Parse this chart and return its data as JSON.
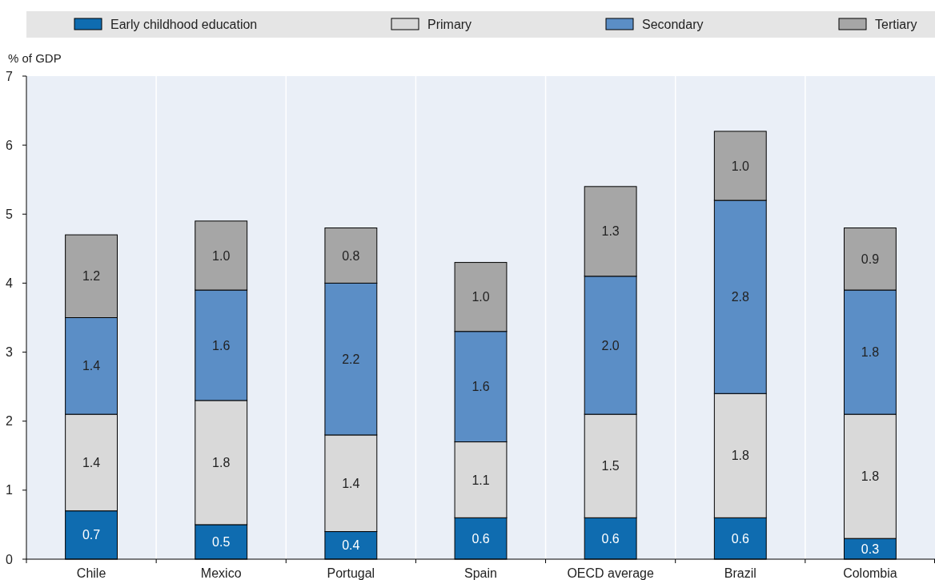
{
  "chart_data": {
    "type": "bar",
    "stacked": true,
    "ylabel": "% of GDP",
    "categories": [
      "Chile",
      "Mexico",
      "Portugal",
      "Spain",
      "OECD average",
      "Brazil",
      "Colombia"
    ],
    "series": [
      {
        "name": "Early childhood education",
        "color": "#0f6cb0",
        "values": [
          0.7,
          0.5,
          0.4,
          0.6,
          0.6,
          0.6,
          0.3
        ],
        "value_labels": [
          "0.7",
          "0.5",
          "0.4",
          "0.6",
          "0.6",
          "0.6",
          "0.3"
        ]
      },
      {
        "name": "Primary",
        "color": "#d9d9d9",
        "values": [
          1.4,
          1.8,
          1.4,
          1.1,
          1.5,
          1.8,
          1.8
        ],
        "value_labels": [
          "1.4",
          "1.8",
          "1.4",
          "1.1",
          "1.5",
          "1.8",
          "1.8"
        ]
      },
      {
        "name": "Secondary",
        "color": "#5b8ec6",
        "values": [
          1.4,
          1.6,
          2.2,
          1.6,
          2.0,
          2.8,
          1.8
        ],
        "value_labels": [
          "1.4",
          "1.6",
          "2.2",
          "1.6",
          "2.0",
          "2.8",
          "1.8"
        ]
      },
      {
        "name": "Tertiary",
        "color": "#a6a6a6",
        "values": [
          1.2,
          1.0,
          0.8,
          1.0,
          1.3,
          1.0,
          0.9
        ],
        "value_labels": [
          "1.2",
          "1.0",
          "0.8",
          "1.0",
          "1.3",
          "1.0",
          "0.9"
        ]
      }
    ],
    "ylim": [
      0,
      7
    ],
    "yticks": [
      0,
      1,
      2,
      3,
      4,
      5,
      6,
      7
    ],
    "grid": "x",
    "legend": "top"
  }
}
